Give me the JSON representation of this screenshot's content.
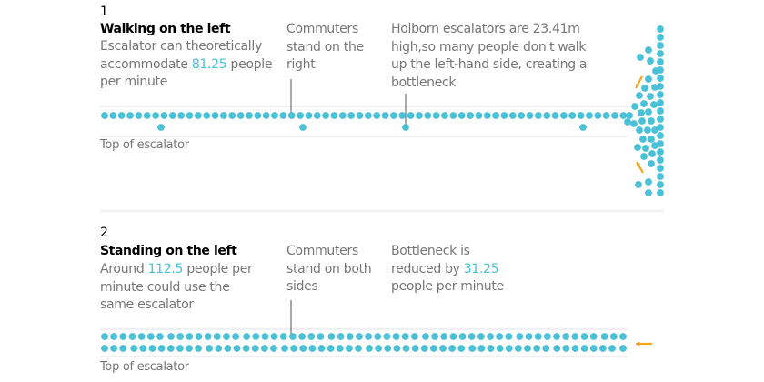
{
  "colors": {
    "dot": "#4bc1d8",
    "arrow": "#f5a623",
    "line": "#e0e0e0",
    "text": "#767676"
  },
  "section1": {
    "number": "1",
    "title": "Walking on the left",
    "desc_pre": "Escalator can theoretically accommodate ",
    "desc_value": "81.25",
    "desc_post": " people per minute",
    "note1": "Commuters stand on the right",
    "note2": "Holborn escalators are 23.41m high,so many people don't walk up the left-hand side, creating a bottleneck",
    "bottom_label": "Top of escalator"
  },
  "section2": {
    "number": "2",
    "title": "Standing on the left",
    "desc_pre": "Around ",
    "desc_value": "112.5",
    "desc_post": " people per minute could use the same escalator",
    "note1": "Commuters stand on both sides",
    "note2_pre": "Bottleneck is reduced by ",
    "note2_value": "31.25",
    "note2_post": " people per minute",
    "bottom_label": "Top of escalator",
    "top_row_groups": [
      7,
      8,
      9,
      10,
      10,
      9,
      3
    ],
    "bottom_row_groups": [
      3,
      8,
      8,
      9,
      11,
      9,
      7,
      1
    ]
  }
}
